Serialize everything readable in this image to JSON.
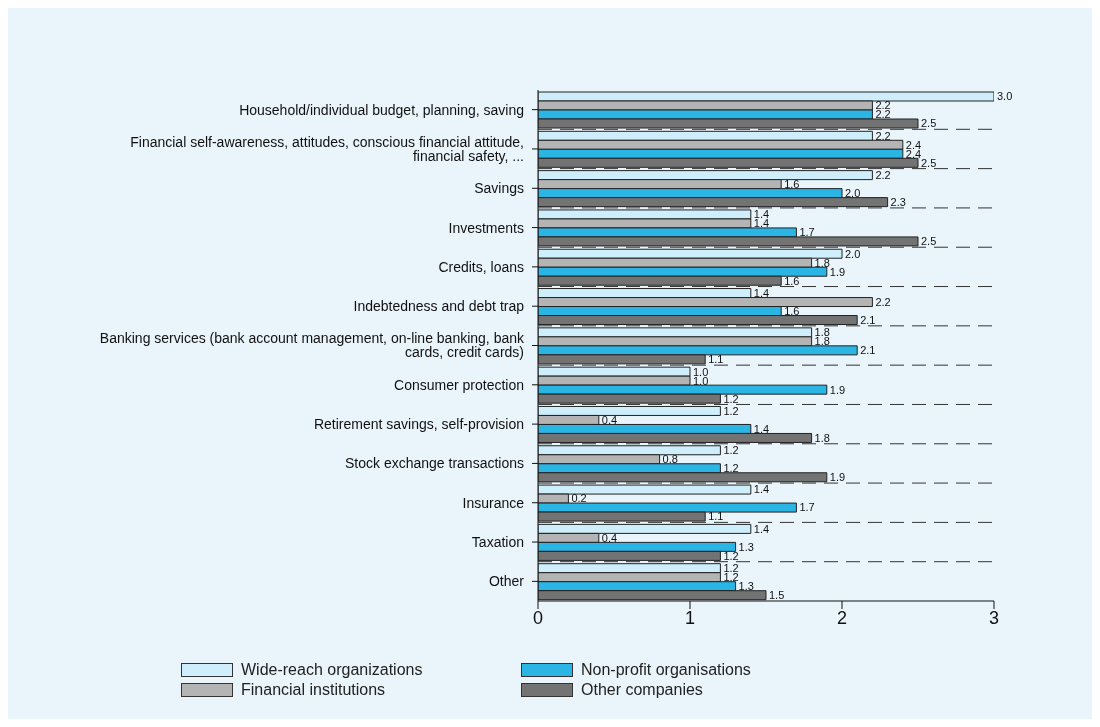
{
  "chart_data": {
    "type": "bar",
    "orientation": "horizontal",
    "categories": [
      "Household/individual budget, planning, saving",
      "Financial self-awareness, attitudes, conscious financial attitude, financial safety, ...",
      "Savings",
      "Investments",
      "Credits, loans",
      "Indebtedness and debt trap",
      "Banking services (bank account management, on-line banking, bank cards, credit cards)",
      "Consumer protection",
      "Retirement savings, self-provision",
      "Stock exchange transactions",
      "Insurance",
      "Taxation",
      "Other"
    ],
    "series": [
      {
        "name": "Wide-reach organizations",
        "color": "#cdeefa",
        "values": [
          3.0,
          2.2,
          2.2,
          1.4,
          2.0,
          1.4,
          1.8,
          1.0,
          1.2,
          1.2,
          1.4,
          1.4,
          1.2
        ],
        "value_labels": [
          "3.0",
          "2.2",
          "2.2",
          "1.4",
          "2.0",
          "1.4",
          "1.8",
          "1.0",
          "1.2",
          "1.2",
          "1.4",
          "1.4",
          "1.2"
        ]
      },
      {
        "name": "Financial institutions",
        "color": "#b4b4b4",
        "values": [
          2.2,
          2.4,
          1.6,
          1.4,
          1.8,
          2.2,
          1.8,
          1.0,
          0.4,
          0.8,
          0.2,
          0.4,
          1.2
        ],
        "value_labels": [
          "2.2",
          "2.4",
          "1.6",
          "1.4",
          "1.8",
          "2.2",
          "1.8",
          "1.0",
          "0.4",
          "0.8",
          "0.2",
          "0.4",
          "1.2"
        ]
      },
      {
        "name": "Non-profit organisations",
        "color": "#2bb5e5",
        "values": [
          2.2,
          2.4,
          2.0,
          1.7,
          1.9,
          1.6,
          2.1,
          1.9,
          1.4,
          1.2,
          1.7,
          1.3,
          1.3
        ],
        "value_labels": [
          "2.2",
          "2.4",
          "2.0",
          "1.7",
          "1.9",
          "1.6",
          "2.1",
          "1.9",
          "1.4",
          "1.2",
          "1.7",
          "1.3",
          "1.3"
        ]
      },
      {
        "name": "Other companies",
        "color": "#737373",
        "values": [
          2.5,
          2.5,
          2.3,
          2.5,
          1.6,
          2.1,
          1.1,
          1.2,
          1.8,
          1.9,
          1.1,
          1.2,
          1.5
        ],
        "value_labels": [
          "2.5",
          "2.5",
          "2.3",
          "2.5",
          "1.6",
          "2.1",
          "1.1",
          "1.2",
          "1.8",
          "1.9",
          "1.1",
          "1.2",
          "1.5"
        ]
      }
    ],
    "xlim": [
      0,
      3
    ],
    "xticks": [
      0,
      1,
      2,
      3
    ],
    "grid": "y",
    "legend": "bottom"
  }
}
